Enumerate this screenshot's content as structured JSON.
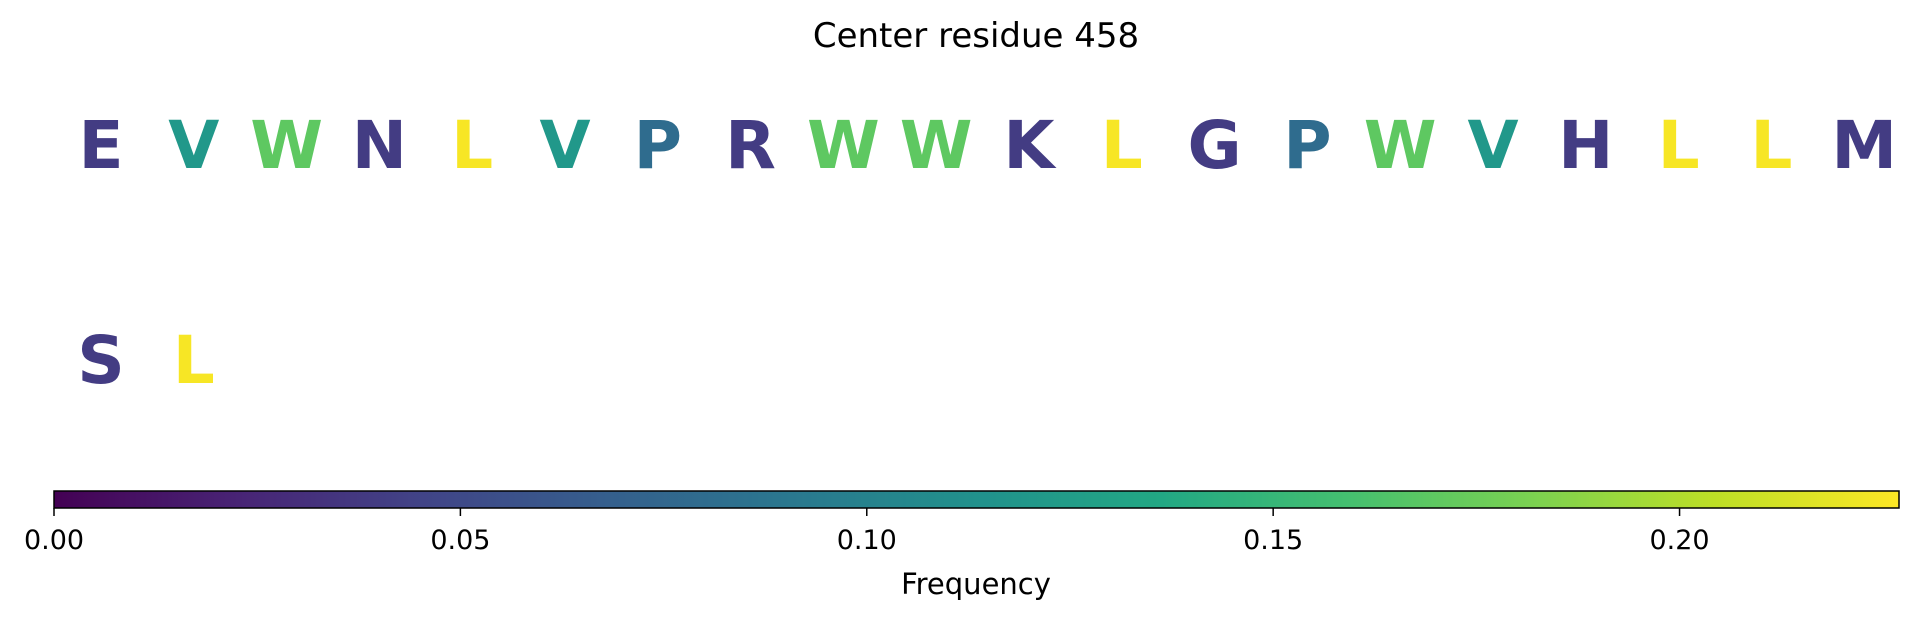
{
  "chart_data": {
    "type": "sequence-logo",
    "title": "Center residue 458",
    "residues": [
      {
        "letter": "E",
        "frequency": 0.04
      },
      {
        "letter": "V",
        "frequency": 0.12
      },
      {
        "letter": "W",
        "frequency": 0.17
      },
      {
        "letter": "N",
        "frequency": 0.04
      },
      {
        "letter": "L",
        "frequency": 0.225
      },
      {
        "letter": "V",
        "frequency": 0.12
      },
      {
        "letter": "P",
        "frequency": 0.08
      },
      {
        "letter": "R",
        "frequency": 0.04
      },
      {
        "letter": "W",
        "frequency": 0.17
      },
      {
        "letter": "W",
        "frequency": 0.17
      },
      {
        "letter": "K",
        "frequency": 0.04
      },
      {
        "letter": "L",
        "frequency": 0.225
      },
      {
        "letter": "G",
        "frequency": 0.04
      },
      {
        "letter": "P",
        "frequency": 0.08
      },
      {
        "letter": "W",
        "frequency": 0.17
      },
      {
        "letter": "V",
        "frequency": 0.12
      },
      {
        "letter": "H",
        "frequency": 0.04
      },
      {
        "letter": "L",
        "frequency": 0.225
      },
      {
        "letter": "L",
        "frequency": 0.225
      },
      {
        "letter": "M",
        "frequency": 0.04
      },
      {
        "letter": "S",
        "frequency": 0.04
      },
      {
        "letter": "L",
        "frequency": 0.225
      }
    ],
    "colorbar": {
      "colormap": "viridis",
      "range": [
        0,
        0.227
      ],
      "ticks": [
        0.0,
        0.05,
        0.1,
        0.15,
        0.2
      ],
      "tick_labels": [
        "0.00",
        "0.05",
        "0.10",
        "0.15",
        "0.20"
      ],
      "label": "Frequency",
      "orientation": "horizontal"
    }
  }
}
